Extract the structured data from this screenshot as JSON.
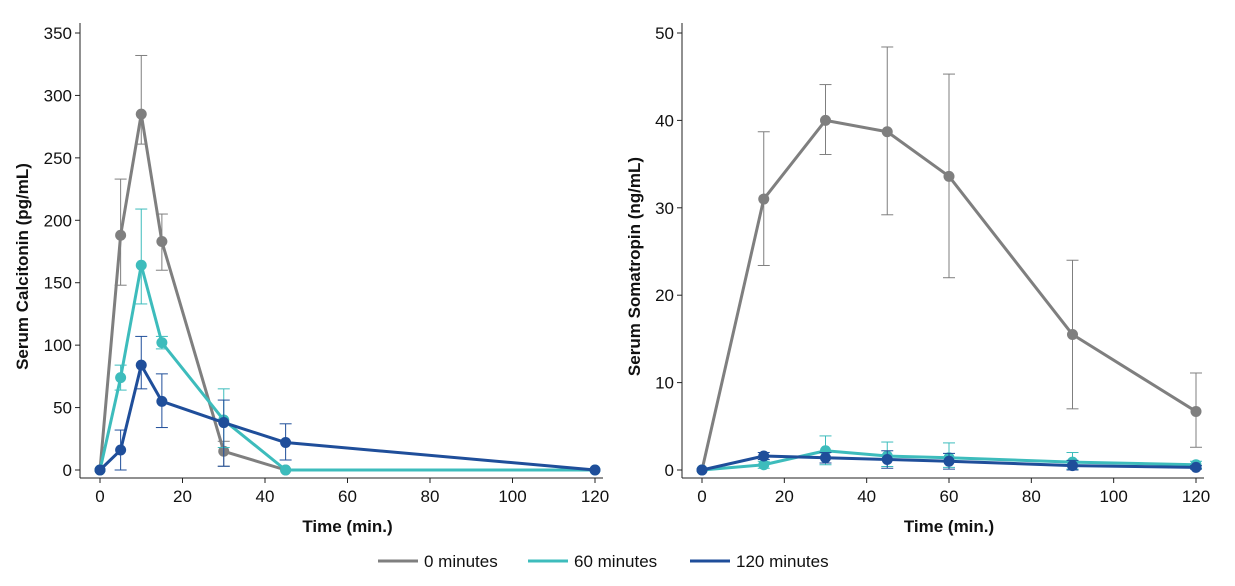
{
  "chart_data": [
    {
      "type": "line",
      "xlabel": "Time (min.)",
      "ylabel": "Serum Calcitonin (pg/mL)",
      "xlim": [
        0,
        120
      ],
      "ylim": [
        0,
        350
      ],
      "xticks": [
        0,
        20,
        40,
        60,
        80,
        100,
        120
      ],
      "yticks": [
        0,
        50,
        100,
        150,
        200,
        250,
        300,
        350
      ],
      "grid": false,
      "series": [
        {
          "name": "0 minutes",
          "color": "#7f7f7f",
          "x": [
            0,
            5,
            10,
            15,
            30,
            45,
            120
          ],
          "y": [
            0,
            188,
            285,
            183,
            15,
            0,
            0
          ],
          "err_low": [
            null,
            148,
            261,
            160,
            3,
            null,
            null
          ],
          "err_high": [
            null,
            233,
            332,
            205,
            23,
            null,
            null
          ]
        },
        {
          "name": "60 minutes",
          "color": "#3dbcbc",
          "x": [
            0,
            5,
            10,
            15,
            30,
            45,
            120
          ],
          "y": [
            0,
            74,
            164,
            102,
            40,
            0,
            0
          ],
          "err_low": [
            null,
            64,
            133,
            97,
            18,
            null,
            null
          ],
          "err_high": [
            null,
            84,
            209,
            107,
            65,
            null,
            null
          ]
        },
        {
          "name": "120 minutes",
          "color": "#1f4e9a",
          "x": [
            0,
            5,
            10,
            15,
            30,
            45,
            120
          ],
          "y": [
            0,
            16,
            84,
            55,
            38,
            22,
            0
          ],
          "err_low": [
            null,
            0,
            65,
            34,
            3,
            8,
            null
          ],
          "err_high": [
            null,
            32,
            107,
            77,
            56,
            37,
            null
          ]
        }
      ]
    },
    {
      "type": "line",
      "xlabel": "Time (min.)",
      "ylabel": "Serum Somatropin (ng/mL)",
      "xlim": [
        0,
        120
      ],
      "ylim": [
        0,
        50
      ],
      "xticks": [
        0,
        20,
        40,
        60,
        80,
        100,
        120
      ],
      "yticks": [
        0,
        10,
        20,
        30,
        40,
        50
      ],
      "grid": false,
      "series": [
        {
          "name": "0 minutes",
          "color": "#7f7f7f",
          "x": [
            0,
            15,
            30,
            45,
            60,
            90,
            120
          ],
          "y": [
            0,
            31,
            40,
            38.7,
            33.6,
            15.5,
            6.7
          ],
          "err_low": [
            null,
            23.4,
            36.1,
            29.2,
            22,
            7,
            2.6
          ],
          "err_high": [
            null,
            38.7,
            44.1,
            48.4,
            45.3,
            24,
            11.1
          ]
        },
        {
          "name": "60 minutes",
          "color": "#3dbcbc",
          "x": [
            0,
            15,
            30,
            45,
            60,
            90,
            120
          ],
          "y": [
            0,
            0.6,
            2.2,
            1.6,
            1.4,
            0.9,
            0.6
          ],
          "err_low": [
            null,
            0.2,
            0.6,
            0.4,
            0.3,
            0.1,
            0.2
          ],
          "err_high": [
            null,
            1.0,
            3.9,
            3.2,
            3.1,
            2.0,
            1.0
          ]
        },
        {
          "name": "120 minutes",
          "color": "#1f4e9a",
          "x": [
            0,
            15,
            30,
            45,
            60,
            90,
            120
          ],
          "y": [
            0,
            1.6,
            1.4,
            1.2,
            1.0,
            0.5,
            0.3
          ],
          "err_low": [
            null,
            1.2,
            0.8,
            0.2,
            0.1,
            -0.1,
            0.1
          ],
          "err_high": [
            null,
            2.0,
            2.0,
            2.2,
            1.9,
            1.1,
            0.5
          ]
        }
      ]
    }
  ],
  "legend": {
    "placement": "bottom",
    "entries": [
      {
        "label": "0 minutes",
        "color": "#7f7f7f"
      },
      {
        "label": "60 minutes",
        "color": "#3dbcbc"
      },
      {
        "label": "120 minutes",
        "color": "#1f4e9a"
      }
    ]
  }
}
